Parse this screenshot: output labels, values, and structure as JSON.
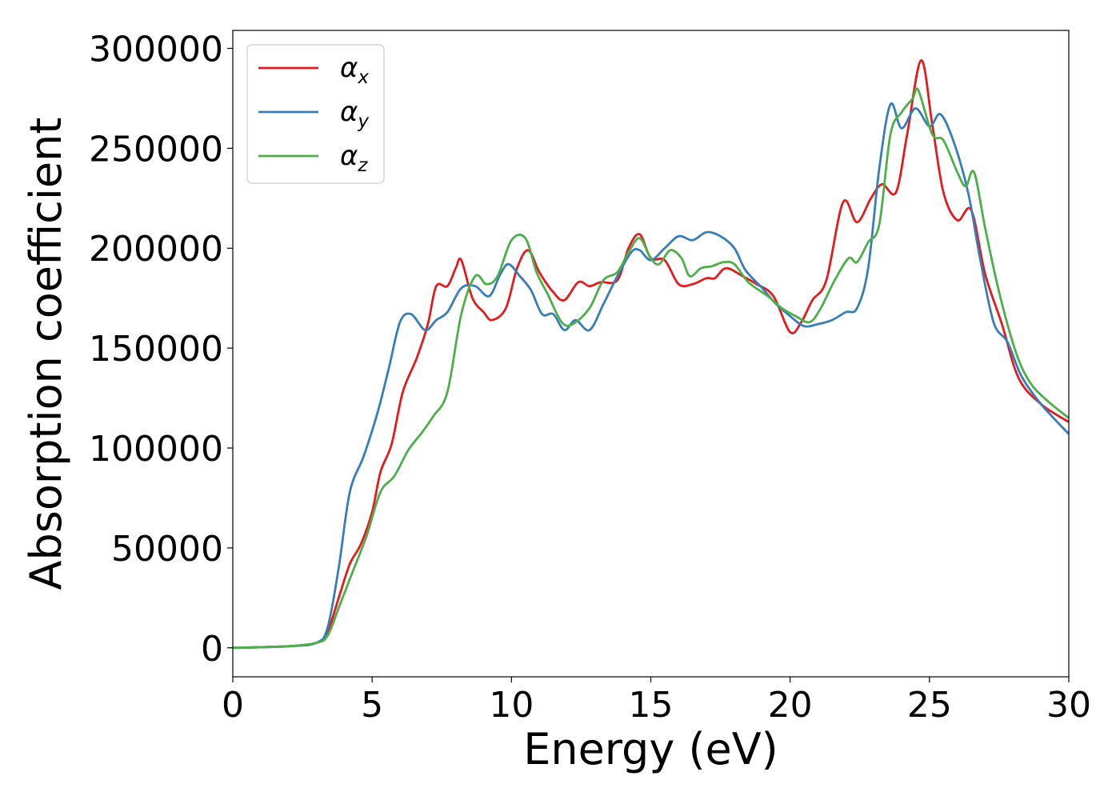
{
  "chart_data": {
    "type": "line",
    "title": "",
    "xlabel": "Energy (eV)",
    "ylabel": "Absorption coefficient",
    "xlim": [
      0,
      30
    ],
    "ylim": [
      -14500,
      309000
    ],
    "xticks": [
      0,
      5,
      10,
      15,
      20,
      25,
      30
    ],
    "xtick_labels": [
      "0",
      "5",
      "10",
      "15",
      "20",
      "25",
      "30"
    ],
    "yticks": [
      0,
      50000,
      100000,
      150000,
      200000,
      250000,
      300000
    ],
    "ytick_labels": [
      "0",
      "50000",
      "100000",
      "150000",
      "200000",
      "250000",
      "300000"
    ],
    "grid": false,
    "legend_position": "top-left",
    "series": [
      {
        "name": "α_x",
        "legend_base": "α",
        "legend_sub": "x",
        "color": "#e41a1c",
        "points": [
          [
            0,
            0
          ],
          [
            2,
            800
          ],
          [
            3,
            2500
          ],
          [
            3.4,
            8000
          ],
          [
            3.8,
            25000
          ],
          [
            4.2,
            42000
          ],
          [
            4.6,
            52000
          ],
          [
            5,
            68000
          ],
          [
            5.3,
            88000
          ],
          [
            5.7,
            102000
          ],
          [
            6.1,
            128000
          ],
          [
            6.6,
            145000
          ],
          [
            7,
            162000
          ],
          [
            7.3,
            181000
          ],
          [
            7.7,
            181000
          ],
          [
            8,
            190000
          ],
          [
            8.2,
            194000
          ],
          [
            8.6,
            175000
          ],
          [
            9,
            168000
          ],
          [
            9.3,
            164000
          ],
          [
            9.8,
            170000
          ],
          [
            10.2,
            190000
          ],
          [
            10.6,
            199000
          ],
          [
            11,
            188000
          ],
          [
            11.5,
            178000
          ],
          [
            11.9,
            174000
          ],
          [
            12.4,
            183000
          ],
          [
            12.8,
            181000
          ],
          [
            13.2,
            183000
          ],
          [
            13.8,
            184000
          ],
          [
            14.2,
            200000
          ],
          [
            14.6,
            207000
          ],
          [
            15,
            195000
          ],
          [
            15.5,
            194000
          ],
          [
            16,
            182000
          ],
          [
            16.5,
            182000
          ],
          [
            17,
            185000
          ],
          [
            17.3,
            185000
          ],
          [
            17.7,
            190000
          ],
          [
            18.3,
            186000
          ],
          [
            18.8,
            182000
          ],
          [
            19.4,
            176000
          ],
          [
            20,
            158000
          ],
          [
            20.4,
            163000
          ],
          [
            20.8,
            174000
          ],
          [
            21.3,
            184000
          ],
          [
            21.9,
            223000
          ],
          [
            22.4,
            213000
          ],
          [
            22.9,
            225000
          ],
          [
            23.3,
            232000
          ],
          [
            23.8,
            228000
          ],
          [
            24.2,
            257000
          ],
          [
            24.7,
            294000
          ],
          [
            25.1,
            262000
          ],
          [
            25.5,
            228000
          ],
          [
            26,
            214000
          ],
          [
            26.5,
            219000
          ],
          [
            27,
            187000
          ],
          [
            27.6,
            162000
          ],
          [
            28.2,
            135000
          ],
          [
            29,
            122000
          ],
          [
            30,
            113000
          ]
        ]
      },
      {
        "name": "α_y",
        "legend_base": "α",
        "legend_sub": "y",
        "color": "#377eb8",
        "points": [
          [
            0,
            0
          ],
          [
            2,
            800
          ],
          [
            3,
            2500
          ],
          [
            3.4,
            10000
          ],
          [
            3.8,
            40000
          ],
          [
            4.2,
            78000
          ],
          [
            4.7,
            96000
          ],
          [
            5.2,
            118000
          ],
          [
            5.6,
            140000
          ],
          [
            6,
            163000
          ],
          [
            6.4,
            167000
          ],
          [
            6.9,
            159000
          ],
          [
            7.3,
            164000
          ],
          [
            7.7,
            168000
          ],
          [
            8.2,
            180000
          ],
          [
            8.7,
            181000
          ],
          [
            9.2,
            176000
          ],
          [
            9.6,
            187000
          ],
          [
            9.9,
            192000
          ],
          [
            10.3,
            186000
          ],
          [
            10.7,
            179000
          ],
          [
            11.1,
            167000
          ],
          [
            11.5,
            167000
          ],
          [
            11.9,
            159000
          ],
          [
            12.3,
            164000
          ],
          [
            12.8,
            159000
          ],
          [
            13.3,
            172000
          ],
          [
            13.8,
            186000
          ],
          [
            14.3,
            198000
          ],
          [
            14.6,
            199000
          ],
          [
            15,
            194000
          ],
          [
            15.5,
            200000
          ],
          [
            16,
            206000
          ],
          [
            16.5,
            204000
          ],
          [
            17,
            208000
          ],
          [
            17.5,
            206000
          ],
          [
            18,
            200000
          ],
          [
            18.4,
            189000
          ],
          [
            19,
            180000
          ],
          [
            19.5,
            172000
          ],
          [
            20,
            166000
          ],
          [
            20.5,
            161000
          ],
          [
            21,
            162000
          ],
          [
            21.5,
            164000
          ],
          [
            22,
            168000
          ],
          [
            22.4,
            170000
          ],
          [
            22.8,
            190000
          ],
          [
            23.2,
            240000
          ],
          [
            23.6,
            272000
          ],
          [
            24,
            260000
          ],
          [
            24.5,
            270000
          ],
          [
            25,
            261000
          ],
          [
            25.4,
            267000
          ],
          [
            25.9,
            252000
          ],
          [
            26.4,
            227000
          ],
          [
            26.8,
            196000
          ],
          [
            27.3,
            163000
          ],
          [
            27.8,
            153000
          ],
          [
            28.3,
            136000
          ],
          [
            29,
            122000
          ],
          [
            30,
            107000
          ]
        ]
      },
      {
        "name": "α_z",
        "legend_base": "α",
        "legend_sub": "z",
        "color": "#4daf4a",
        "points": [
          [
            0,
            0
          ],
          [
            2,
            800
          ],
          [
            3,
            2500
          ],
          [
            3.4,
            6000
          ],
          [
            3.8,
            20000
          ],
          [
            4.3,
            38000
          ],
          [
            4.8,
            56000
          ],
          [
            5.3,
            78000
          ],
          [
            5.8,
            86000
          ],
          [
            6.3,
            99000
          ],
          [
            6.8,
            108000
          ],
          [
            7.2,
            116000
          ],
          [
            7.7,
            128000
          ],
          [
            8.2,
            167000
          ],
          [
            8.7,
            186000
          ],
          [
            9.1,
            182000
          ],
          [
            9.5,
            186000
          ],
          [
            10,
            204000
          ],
          [
            10.5,
            205000
          ],
          [
            10.9,
            188000
          ],
          [
            11.3,
            177000
          ],
          [
            11.8,
            163000
          ],
          [
            12.2,
            162000
          ],
          [
            12.8,
            170000
          ],
          [
            13.3,
            184000
          ],
          [
            13.8,
            188000
          ],
          [
            14.2,
            198000
          ],
          [
            14.6,
            205000
          ],
          [
            15,
            195000
          ],
          [
            15.3,
            192000
          ],
          [
            15.7,
            199000
          ],
          [
            16.1,
            195000
          ],
          [
            16.4,
            186000
          ],
          [
            16.8,
            190000
          ],
          [
            17.2,
            191000
          ],
          [
            17.6,
            193000
          ],
          [
            18,
            192000
          ],
          [
            18.5,
            183000
          ],
          [
            19.2,
            176000
          ],
          [
            19.7,
            170000
          ],
          [
            20.2,
            166000
          ],
          [
            20.7,
            163000
          ],
          [
            21.1,
            170000
          ],
          [
            21.6,
            184000
          ],
          [
            22.1,
            195000
          ],
          [
            22.4,
            193000
          ],
          [
            22.8,
            203000
          ],
          [
            23.2,
            212000
          ],
          [
            23.6,
            257000
          ],
          [
            24,
            268000
          ],
          [
            24.4,
            275000
          ],
          [
            24.6,
            279000
          ],
          [
            25.1,
            257000
          ],
          [
            25.5,
            254000
          ],
          [
            26,
            238000
          ],
          [
            26.3,
            231000
          ],
          [
            26.6,
            238000
          ],
          [
            27,
            210000
          ],
          [
            27.5,
            178000
          ],
          [
            28.1,
            148000
          ],
          [
            28.6,
            133000
          ],
          [
            29.2,
            124000
          ],
          [
            30,
            115000
          ]
        ]
      }
    ]
  }
}
